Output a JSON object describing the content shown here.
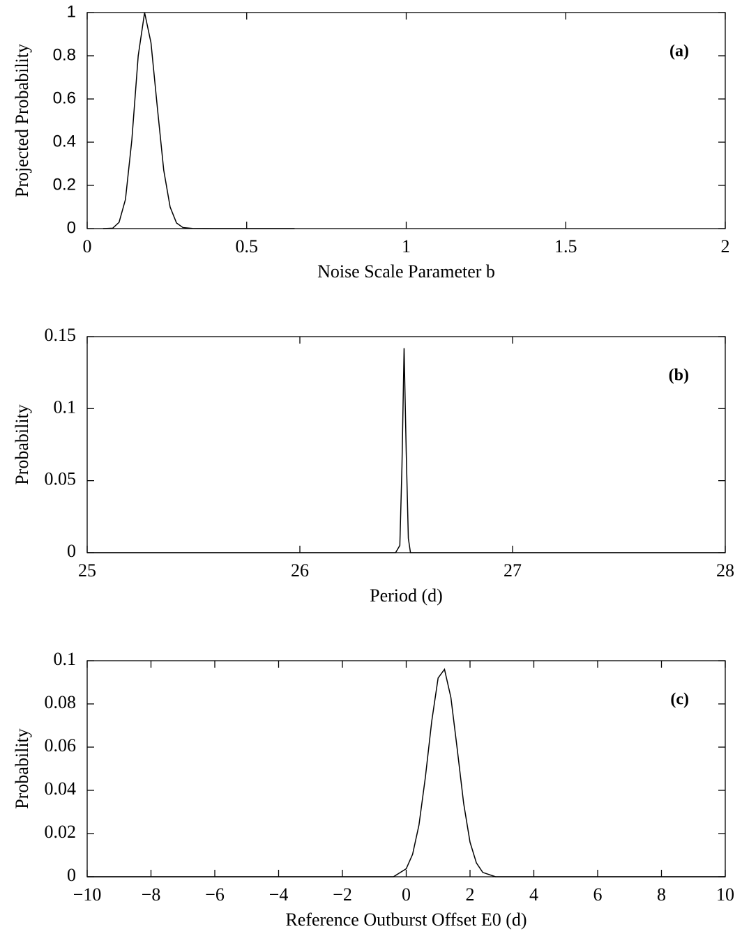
{
  "chart_data": [
    {
      "type": "line",
      "annotation": "(a)",
      "x_label": "Noise Scale Parameter b",
      "y_label": "Projected Probability",
      "x": [
        0.05,
        0.08,
        0.1,
        0.12,
        0.14,
        0.16,
        0.18,
        0.2,
        0.22,
        0.24,
        0.26,
        0.28,
        0.3,
        0.33,
        0.4,
        0.65
      ],
      "values": [
        0,
        0.002,
        0.029,
        0.135,
        0.41,
        0.8,
        1,
        0.86,
        0.56,
        0.27,
        0.1,
        0.026,
        0.005,
        0.001,
        0,
        0
      ],
      "color": "#000000",
      "xlim": [
        0,
        2
      ],
      "ylim": [
        0,
        1
      ],
      "xticks": [
        0,
        0.5,
        1,
        1.5,
        2
      ],
      "yticks": [
        0,
        0.2,
        0.4,
        0.6,
        0.8,
        1
      ]
    },
    {
      "type": "line",
      "annotation": "(b)",
      "x_label": "Period  (d)",
      "y_label": "Probability",
      "x": [
        25,
        26.45,
        26.47,
        26.48,
        26.49,
        26.5,
        26.51,
        26.52,
        26.55,
        28
      ],
      "values": [
        0,
        0,
        0.005,
        0.06,
        0.142,
        0.07,
        0.01,
        0,
        0,
        0
      ],
      "color": "#000000",
      "xlim": [
        25,
        28
      ],
      "ylim": [
        0,
        0.15
      ],
      "xticks": [
        25,
        26,
        27,
        28
      ],
      "yticks": [
        0,
        0.05,
        0.1,
        0.15
      ]
    },
    {
      "type": "line",
      "annotation": "(c)",
      "x_label": "Reference Outburst Offset E0  (d)",
      "y_label": "Probability",
      "x": [
        -10,
        -0.4,
        0,
        0.2,
        0.4,
        0.6,
        0.8,
        1,
        1.2,
        1.4,
        1.6,
        1.8,
        2,
        2.2,
        2.4,
        2.8,
        10
      ],
      "values": [
        0,
        0,
        0.0037,
        0.0104,
        0.024,
        0.046,
        0.072,
        0.092,
        0.096,
        0.083,
        0.059,
        0.034,
        0.016,
        0.0064,
        0.002,
        0,
        0
      ],
      "color": "#000000",
      "xlim": [
        -10,
        10
      ],
      "ylim": [
        0,
        0.1
      ],
      "xticks": [
        {
          "value": -10,
          "label": "−10"
        },
        {
          "value": -8,
          "label": "−8"
        },
        {
          "value": -6,
          "label": "−6"
        },
        {
          "value": -4,
          "label": "−4"
        },
        {
          "value": -2,
          "label": "−2"
        },
        0,
        2,
        4,
        6,
        8,
        10
      ],
      "yticks": [
        0,
        0.02,
        0.04,
        0.06,
        0.08,
        0.1
      ]
    }
  ]
}
